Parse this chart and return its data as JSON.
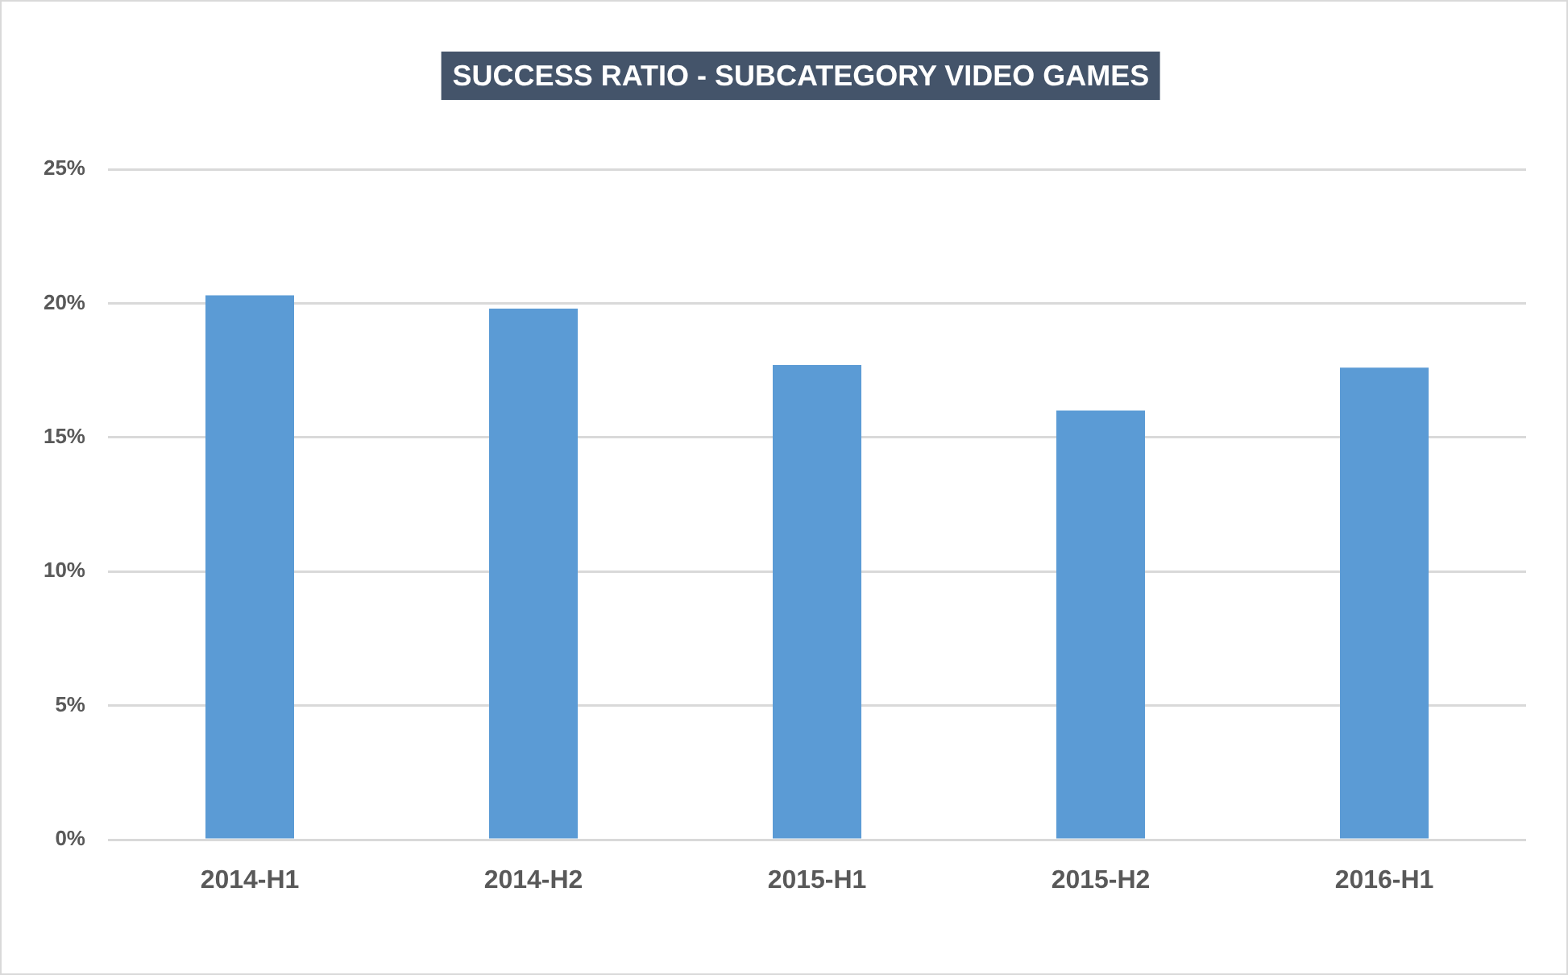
{
  "chart_data": {
    "type": "bar",
    "title": "SUCCESS RATIO - SUBCATEGORY VIDEO GAMES",
    "categories": [
      "2014-H1",
      "2014-H2",
      "2015-H1",
      "2015-H2",
      "2016-H1"
    ],
    "values": [
      20.3,
      19.8,
      17.7,
      16.0,
      17.6
    ],
    "color": "#5b9bd5",
    "ylim": [
      0,
      25
    ],
    "yticks": [
      {
        "value": 0,
        "label": "0%"
      },
      {
        "value": 5,
        "label": "5%"
      },
      {
        "value": 10,
        "label": "10%"
      },
      {
        "value": 15,
        "label": "15%"
      },
      {
        "value": 20,
        "label": "20%"
      },
      {
        "value": 25,
        "label": "25%"
      }
    ],
    "grid": "y"
  }
}
